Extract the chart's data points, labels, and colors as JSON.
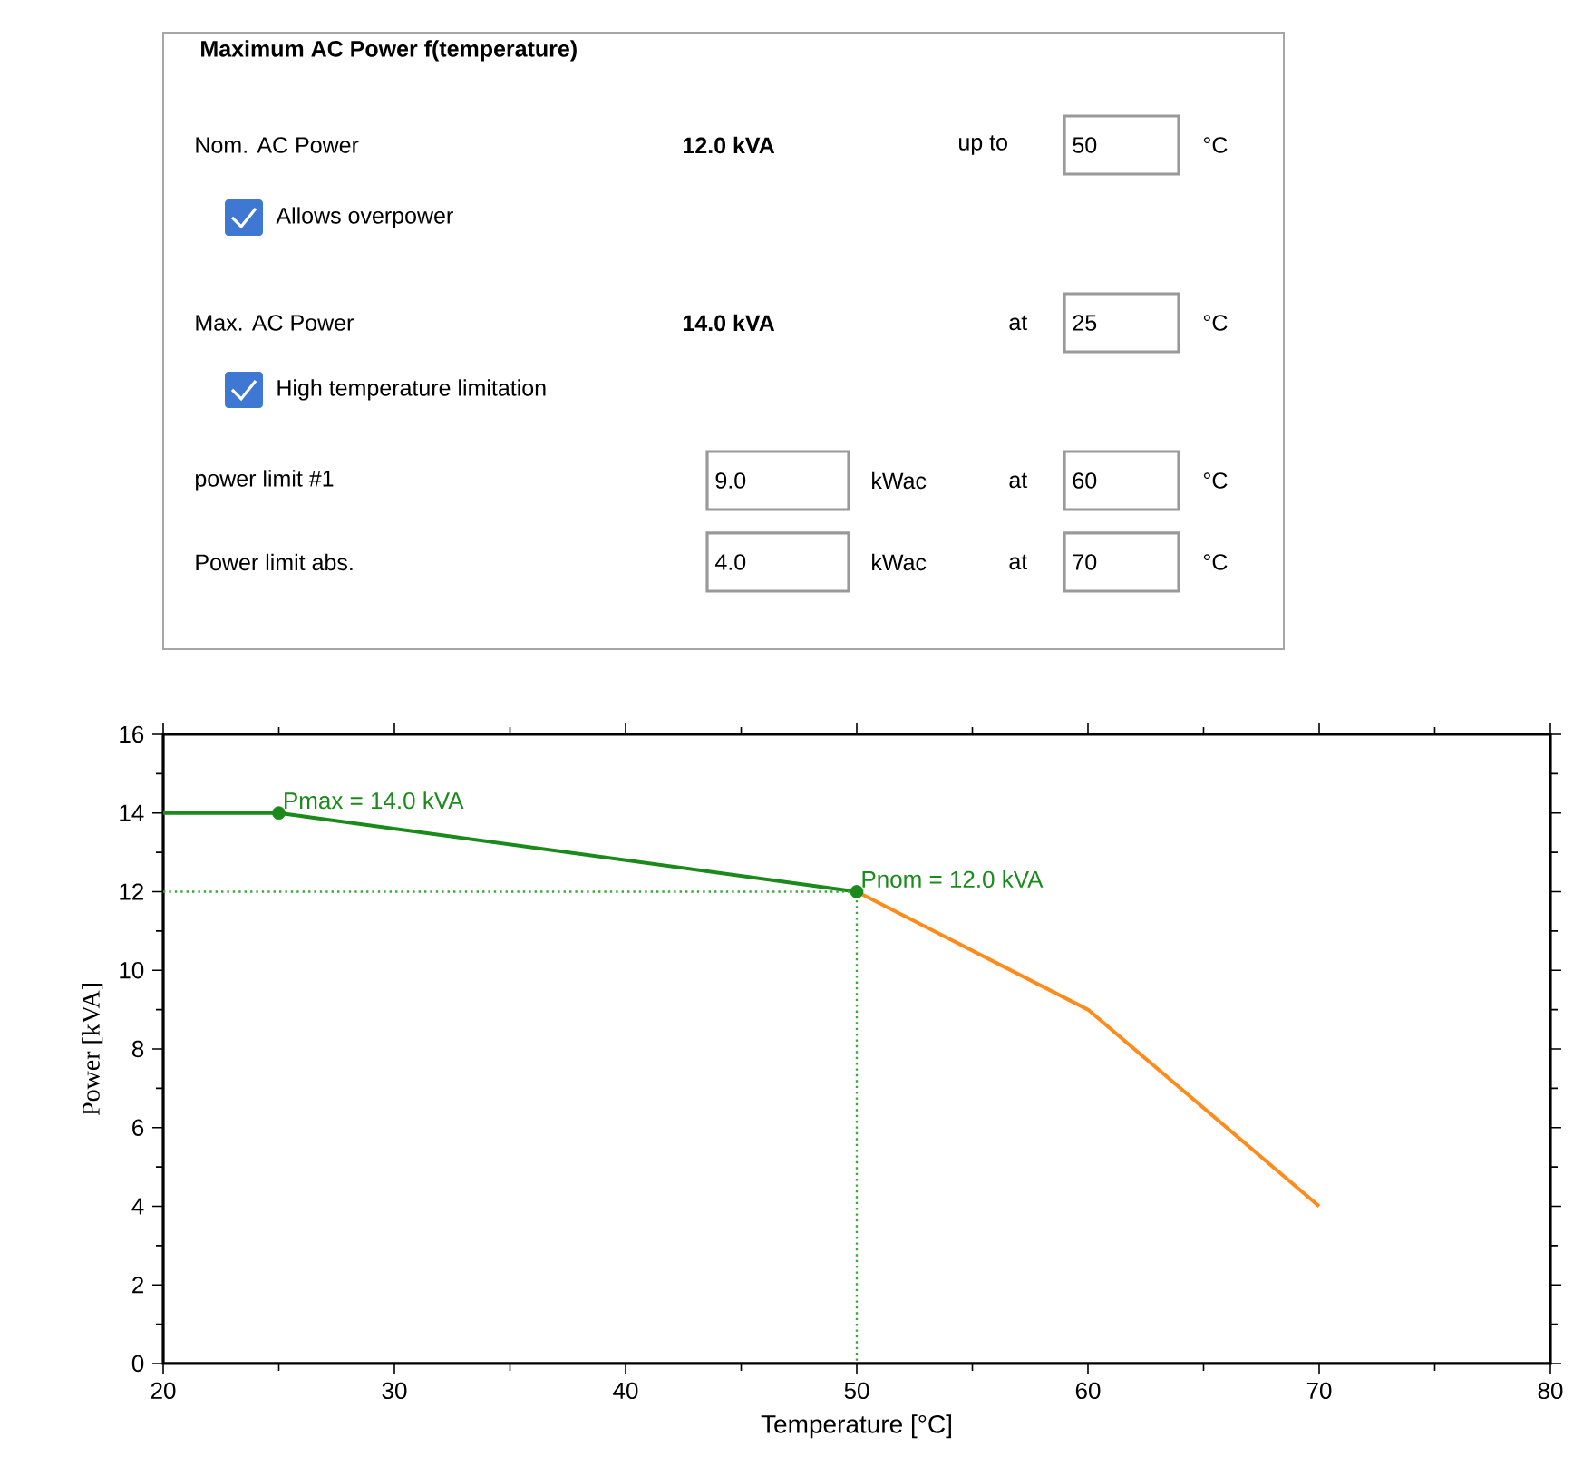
{
  "chart_data": [
    {
      "type": "other",
      "title": "Maximum AC Power f(temperature)",
      "annotations": [
        "Nom. AC Power",
        "12.0 kVA",
        "up to",
        "50",
        "°C",
        "Allows overpower",
        "Max. AC Power",
        "14.0 kVA",
        "at",
        "25",
        "°C",
        "High temperature limitation",
        "power limit #1",
        "9.0",
        "kWac",
        "at",
        "60",
        "°C",
        "Power limit abs.",
        "4.0",
        "kWac",
        "at",
        "70",
        "°C"
      ]
    },
    {
      "type": "line",
      "xlabel": "Temperature [°C]",
      "ylabel": "Power [kVA]",
      "xlim": [
        20,
        80
      ],
      "ylim": [
        0,
        16
      ],
      "xticks": [
        20,
        30,
        40,
        50,
        60,
        70,
        80
      ],
      "yticks": [
        0,
        2,
        4,
        6,
        8,
        10,
        12,
        14,
        16
      ],
      "series": [
        {
          "color": "#1a8a1a",
          "x": [
            20,
            25,
            50
          ],
          "values": [
            14,
            14,
            12
          ],
          "marker": "none",
          "line_style": "solid"
        },
        {
          "color": "#ff8c1a",
          "x": [
            50,
            60,
            70
          ],
          "values": [
            12,
            9,
            4
          ],
          "marker": "none",
          "line_style": "solid"
        },
        {
          "color": "#3aa83a",
          "x": [
            20,
            50,
            50
          ],
          "values": [
            12,
            12,
            0
          ],
          "marker": "none",
          "line_style": "dotted"
        },
        {
          "type": "scatter",
          "color": "#1a8a1a",
          "x": [
            25,
            50
          ],
          "values": [
            14,
            12
          ],
          "marker": "circle"
        }
      ],
      "annotations": [
        {
          "text": "Pmax = 14.0 kVA",
          "x": 25,
          "y": 14
        },
        {
          "text": "Pnom = 12.0 kVA",
          "x": 50,
          "y": 12
        }
      ]
    }
  ]
}
